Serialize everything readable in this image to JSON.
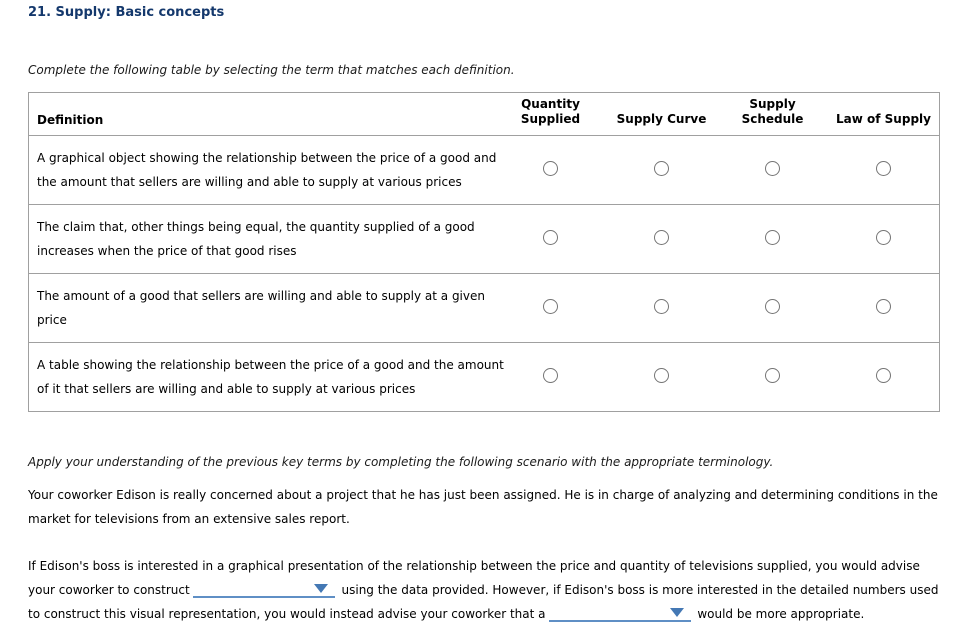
{
  "page": {
    "title": "21. Supply: Basic concepts",
    "instruction_table": "Complete the following table by selecting the term that matches each definition.",
    "instruction_scenario": "Apply your understanding of the previous key terms by completing the following scenario with the appropriate terminology.",
    "scenario_intro": "Your coworker Edison is really concerned about a project that he has just been assigned. He is in charge of analyzing and determining conditions in the market for televisions from an extensive sales report."
  },
  "table": {
    "definition_header": "Definition",
    "option_columns": [
      "Quantity Supplied",
      "Supply Curve",
      "Supply Schedule",
      "Law of Supply"
    ],
    "rows": [
      {
        "definition_lines": [
          "A graphical object showing the relationship between the price of a good and",
          "the amount that sellers are willing and able to supply at various prices"
        ],
        "selected": null
      },
      {
        "definition_lines": [
          "The claim that, other things being equal, the quantity supplied of a good",
          "increases when the price of that good rises"
        ],
        "selected": null
      },
      {
        "definition_lines": [
          "The amount of a good that sellers are willing and able to supply at a given",
          "price"
        ],
        "selected": null
      },
      {
        "definition_lines": [
          "A table showing the relationship between the price of a good and the amount",
          "of it that sellers are willing and able to supply at various prices"
        ],
        "selected": null
      }
    ]
  },
  "fill_in": {
    "segments": [
      "If Edison's boss is interested in a graphical presentation of the relationship between the price and quantity of televisions supplied, you would advise your coworker to construct",
      " using the data provided. However, if Edison's boss is more interested in the detailed numbers used to construct this visual representation, you would instead advise your coworker that a",
      " would be more appropriate."
    ],
    "dropdown1_value": "",
    "dropdown2_value": ""
  },
  "colors": {
    "title_navy": "#14386c",
    "dropdown_line_blue": "#5f8fc5",
    "dropdown_arrow_blue": "#4478b4",
    "table_border_gray": "#a0a0a0"
  }
}
